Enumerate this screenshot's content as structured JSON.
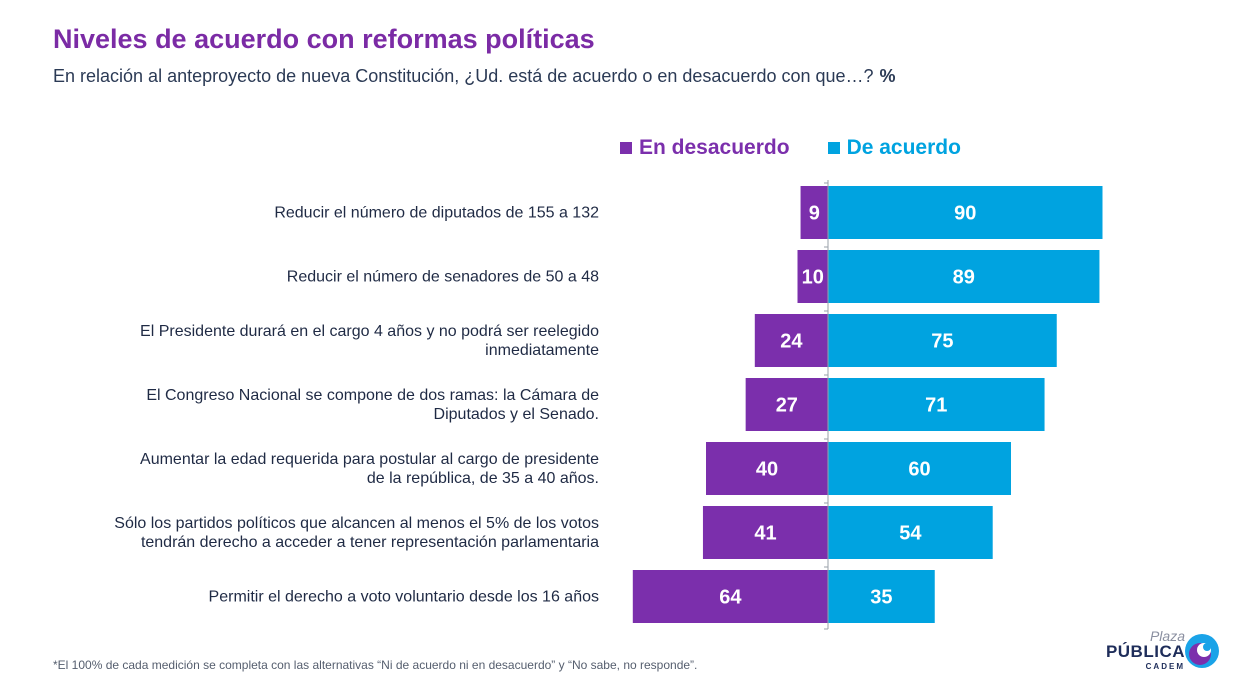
{
  "header": {
    "title": "Niveles de acuerdo con reformas políticas",
    "subtitle": "En relación al anteproyecto de nueva Constitución, ¿Ud. está de acuerdo o en desacuerdo con que…?",
    "unit": "%"
  },
  "colors": {
    "disagree": "#7b2fac",
    "agree": "#00a3e0",
    "title": "#7b2ba5"
  },
  "chart_data": {
    "type": "bar",
    "orientation": "horizontal-diverging",
    "legend_position": "top",
    "grid": false,
    "categories": [
      [
        "Reducir el número de diputados de 155 a 132"
      ],
      [
        "Reducir el número de senadores de 50 a 48"
      ],
      [
        "El Presidente durará en el cargo 4 años y no podrá ser reelegido",
        "inmediatamente"
      ],
      [
        "El Congreso Nacional se compone de dos ramas: la Cámara de",
        "Diputados y el Senado."
      ],
      [
        "Aumentar la edad requerida para postular al cargo de presidente",
        "de la república, de 35 a 40 años."
      ],
      [
        "Sólo los partidos políticos que alcancen al menos el 5% de los votos",
        "tendrán derecho a acceder a tener representación parlamentaria"
      ],
      [
        "Permitir el derecho a voto voluntario desde los 16 años"
      ]
    ],
    "series": [
      {
        "name": "En desacuerdo",
        "values": [
          9,
          10,
          24,
          27,
          40,
          41,
          64
        ]
      },
      {
        "name": "De acuerdo",
        "values": [
          90,
          89,
          75,
          71,
          60,
          54,
          35
        ]
      }
    ]
  },
  "footnote": "*El 100% de cada medición se completa con las alternativas “Ni de acuerdo ni en desacuerdo” y  “No sabe, no responde”.",
  "logo": {
    "line1": "Plaza",
    "line2": "PÚBLICA",
    "line3": "CADEM"
  }
}
